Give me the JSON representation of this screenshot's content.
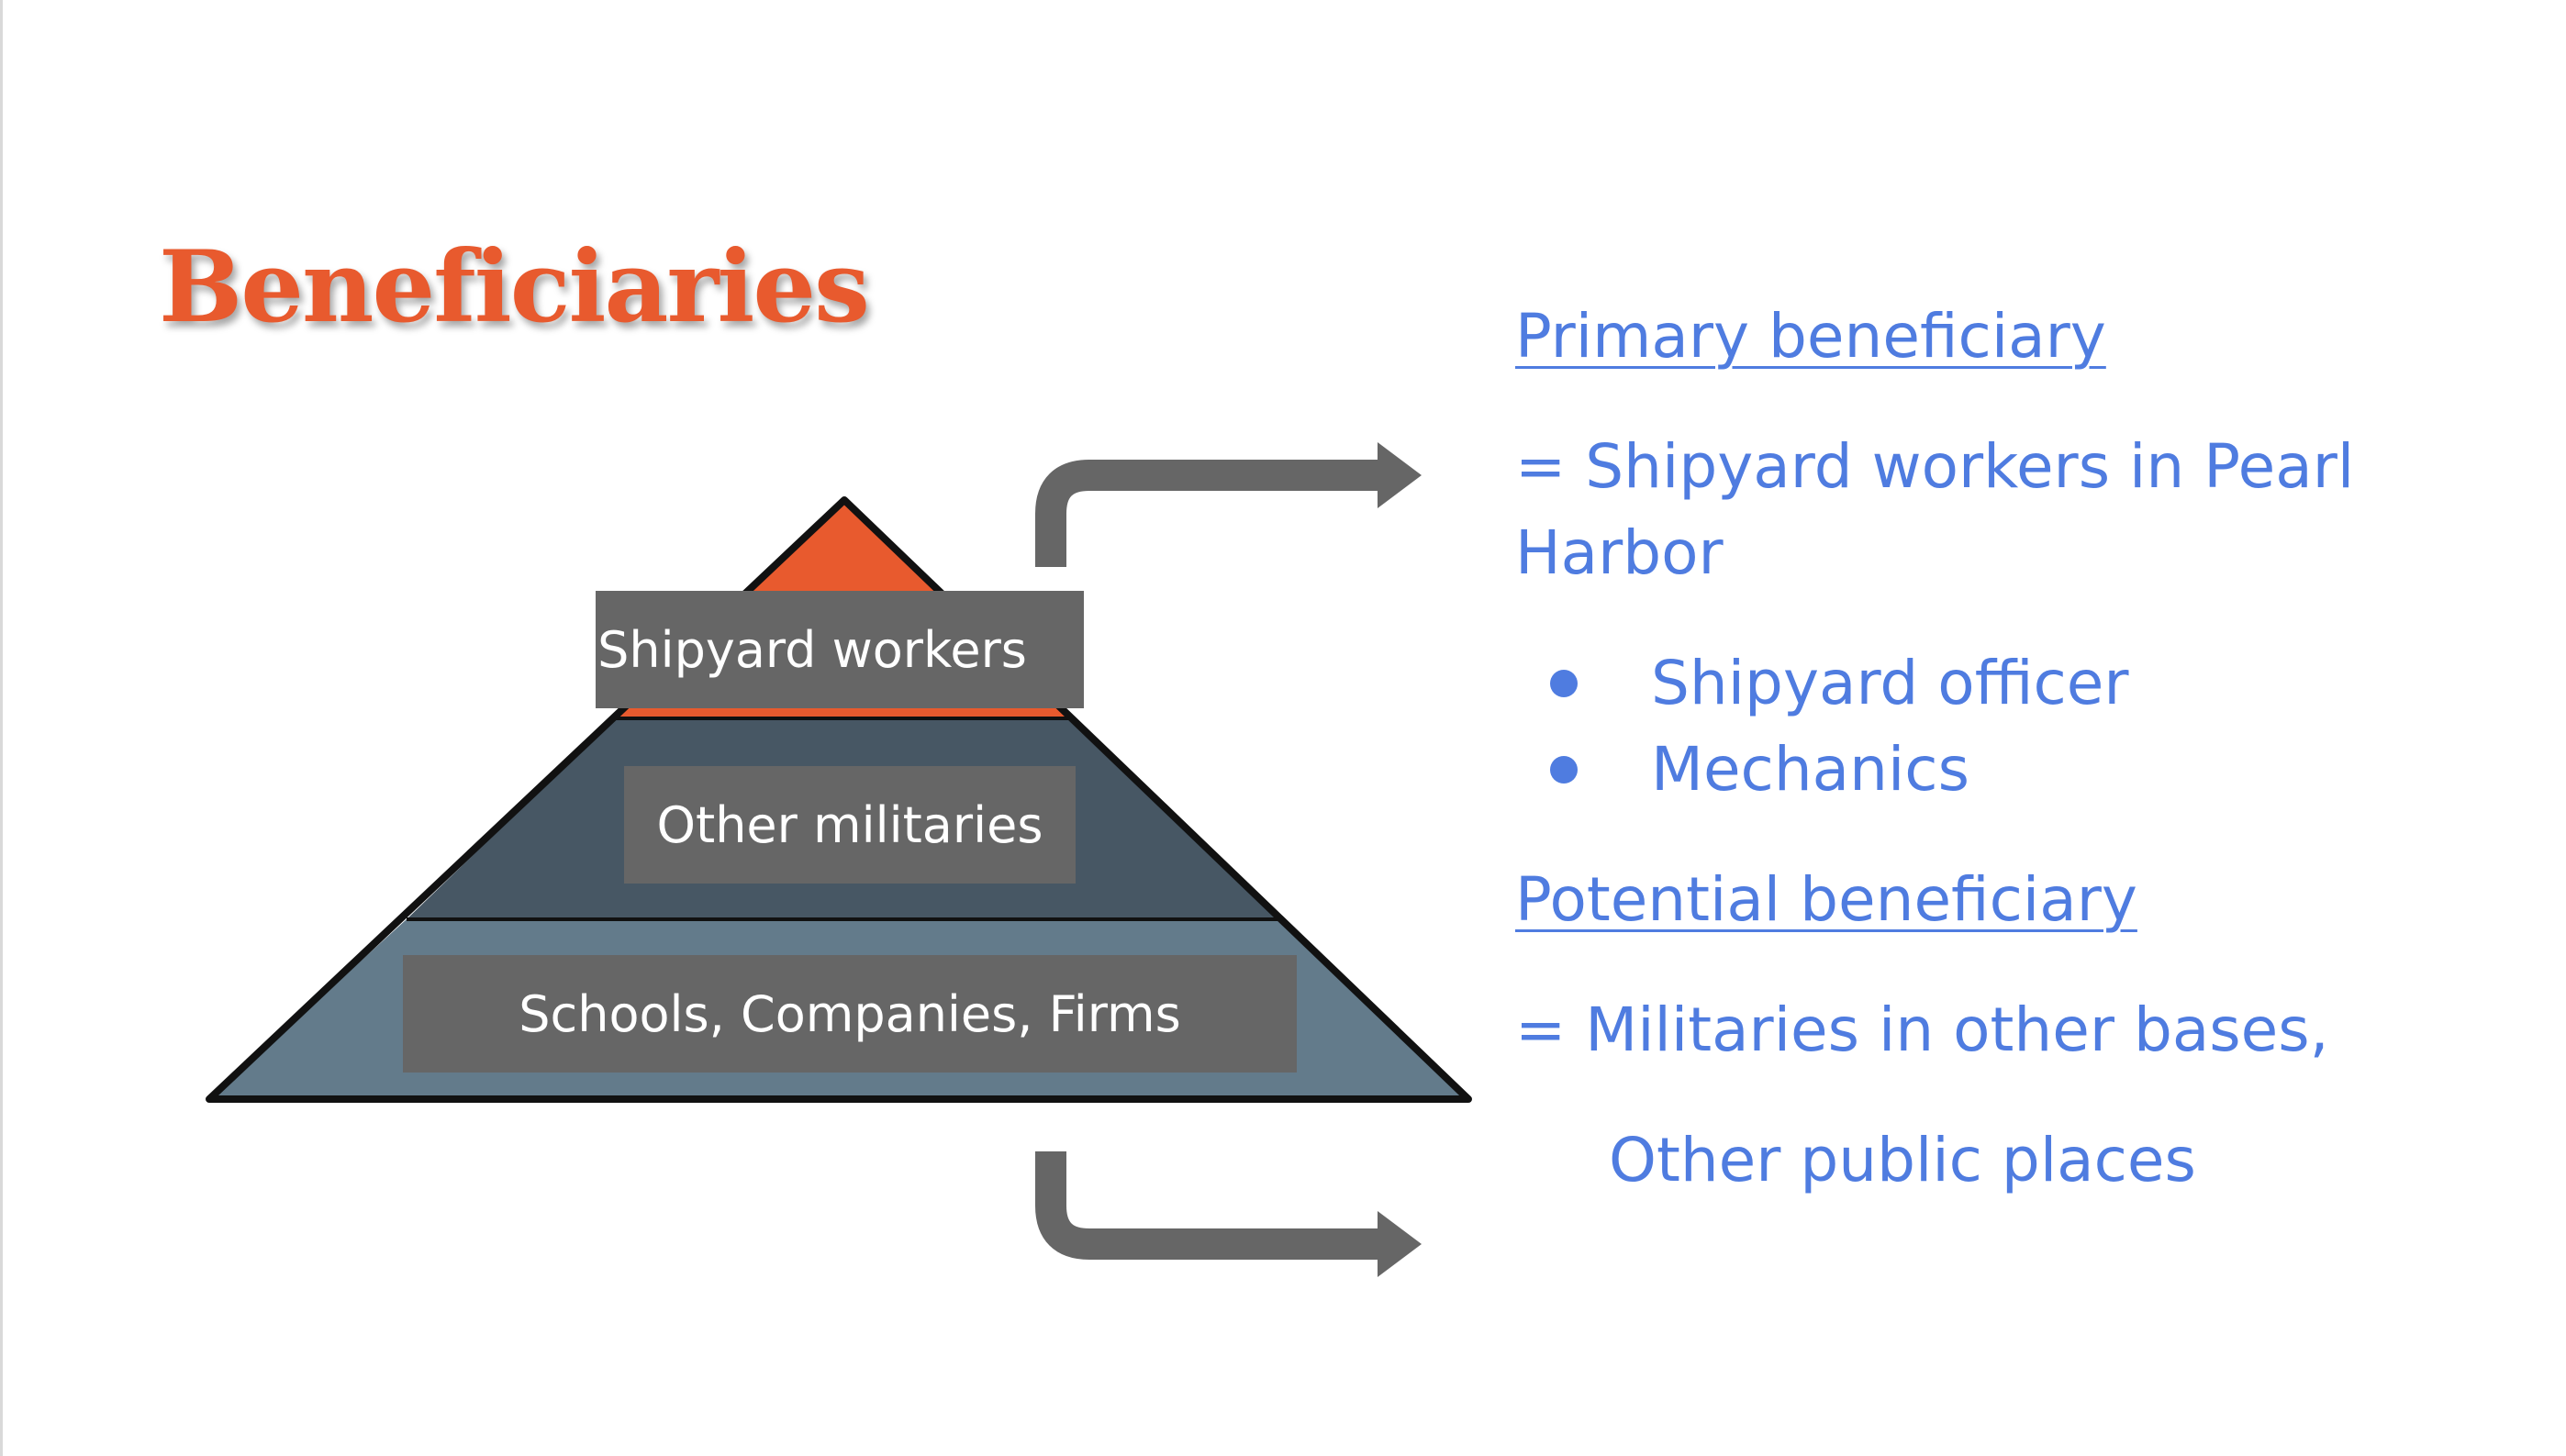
{
  "slide": {
    "title": "Beneficiaries"
  },
  "pyramid": {
    "levels": [
      {
        "label": "Shipyard workers",
        "fill": "#e85a2e"
      },
      {
        "label": "Other militaries",
        "fill": "#475764"
      },
      {
        "label": "Schools, Companies, Firms",
        "fill": "#637b8b"
      }
    ],
    "label_box_color": "#666666",
    "arrow_color": "#666666"
  },
  "details": {
    "primary_heading": "Primary beneficiary",
    "primary_desc": "= Shipyard workers in Pearl Harbor",
    "primary_items": [
      "Shipyard officer",
      "Mechanics"
    ],
    "potential_heading": "Potential beneficiary",
    "potential_desc": "= Militaries in other bases,",
    "potential_desc_cont": "Other public places"
  },
  "colors": {
    "title": "#e85a2e",
    "text": "#4f7ce0"
  }
}
